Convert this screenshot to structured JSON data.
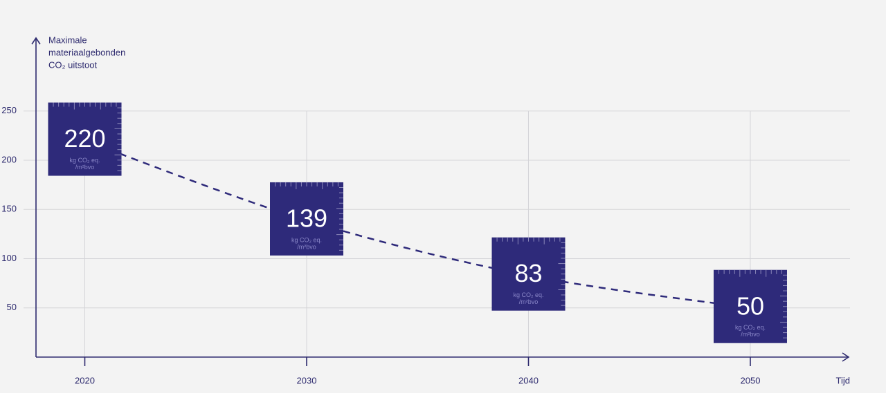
{
  "chart_data": {
    "type": "line",
    "y_label": [
      "Maximale",
      "materiaalgebonden",
      "CO₂ uitstoot"
    ],
    "x_label": "Tijd",
    "x": [
      2020,
      2030,
      2040,
      2050
    ],
    "values": [
      220,
      139,
      83,
      50
    ],
    "value_unit": [
      "kg CO₂ eq.",
      "/m²bvo"
    ],
    "color": "#2e2a7a",
    "xlim": [
      2017.8,
      2054.4
    ],
    "xticks": [
      2020,
      2030,
      2040,
      2050
    ],
    "ylim": [
      0,
      320
    ],
    "yticks": [
      50,
      100,
      150,
      200,
      250
    ],
    "grid": true
  }
}
